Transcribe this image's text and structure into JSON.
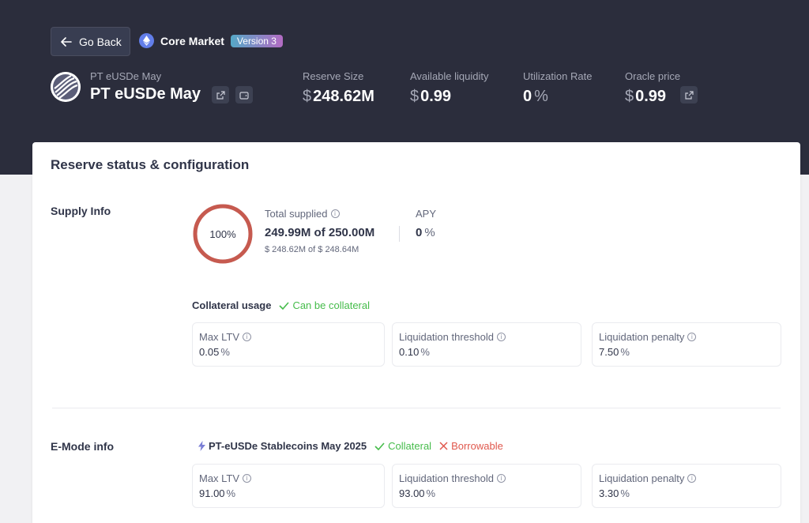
{
  "header": {
    "back_label": "Go Back",
    "market_name": "Core Market",
    "version": "Version 3",
    "asset_symbol": "PT eUSDe May",
    "asset_name": "PT eUSDe May",
    "stats": [
      {
        "label": "Reserve Size",
        "prefix": "$",
        "value": "248.62M",
        "suffix": ""
      },
      {
        "label": "Available liquidity",
        "prefix": "$",
        "value": "0.99",
        "suffix": ""
      },
      {
        "label": "Utilization Rate",
        "prefix": "",
        "value": "0",
        "suffix": "%"
      },
      {
        "label": "Oracle price",
        "prefix": "$",
        "value": "0.99",
        "suffix": ""
      }
    ]
  },
  "card": {
    "title": "Reserve status & configuration",
    "supply": {
      "section_label": "Supply Info",
      "percent_label": "100%",
      "utilization_fraction": 1.0,
      "total_supplied_label": "Total supplied",
      "total_supplied_value": "249.99M of 250.00M",
      "total_supplied_usd": "$ 248.62M of $ 248.64M",
      "apy_label": "APY",
      "apy_value": "0",
      "apy_suffix": "%"
    },
    "collateral": {
      "title": "Collateral usage",
      "status": "Can be collateral",
      "boxes": [
        {
          "label": "Max LTV",
          "value": "0.05"
        },
        {
          "label": "Liquidation threshold",
          "value": "0.10"
        },
        {
          "label": "Liquidation penalty",
          "value": "7.50"
        }
      ],
      "pct": "%"
    },
    "emode": {
      "section_label": "E-Mode info",
      "category": "PT-eUSDe Stablecoins May 2025",
      "collateral_label": "Collateral",
      "borrowable_label": "Borrowable",
      "boxes": [
        {
          "label": "Max LTV",
          "value": "91.00"
        },
        {
          "label": "Liquidation threshold",
          "value": "93.00"
        },
        {
          "label": "Liquidation penalty",
          "value": "3.30"
        }
      ],
      "pct": "%"
    }
  },
  "colors": {
    "header_bg": "#2b2d3c",
    "ring": "#c65a4f",
    "green": "#46bc4b",
    "red": "#e0584d"
  }
}
